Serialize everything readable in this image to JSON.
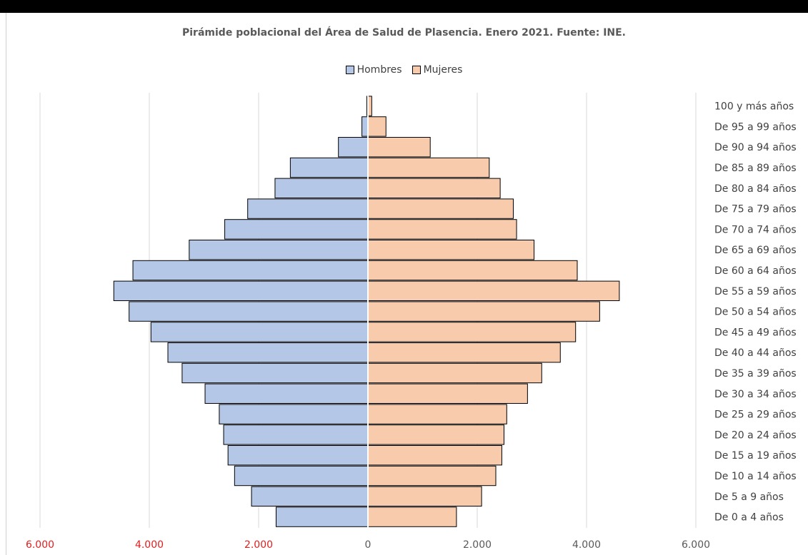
{
  "chart_data": {
    "type": "bar",
    "orientation": "horizontal-pyramid",
    "title": "Pirámide poblacional del Área de Salud de Plasencia. Enero 2021. Fuente: INE.",
    "categories": [
      "De 0 a 4 años",
      "De 5 a 9 años",
      "De 10 a 14 años",
      "De 15 a 19 años",
      "De 20 a 24 años",
      "De 25 a 29 años",
      "De 30 a 34 años",
      "De 35 a 39 años",
      "De 40 a 44 años",
      "De 45 a 49 años",
      "De 50 a 54 años",
      "De 55 a 59 años",
      "De 60 a 64 años",
      "De 65 a 69 años",
      "De 70 a 74 años",
      "De 75 a 79 años",
      "De 80 a 84 años",
      "De 85 a 89 años",
      "De 90 a 94 años",
      "De 95 a 99 años",
      "100 y más años"
    ],
    "series": [
      {
        "name": "Hombres",
        "color": "#b4c7e7",
        "values": [
          1680,
          2130,
          2440,
          2560,
          2640,
          2720,
          2980,
          3400,
          3660,
          3970,
          4370,
          4650,
          4300,
          3270,
          2620,
          2200,
          1700,
          1420,
          540,
          110,
          20
        ]
      },
      {
        "name": "Mujeres",
        "color": "#f8cbad",
        "values": [
          1620,
          2080,
          2340,
          2450,
          2490,
          2540,
          2920,
          3180,
          3520,
          3800,
          4240,
          4600,
          3830,
          3040,
          2720,
          2660,
          2420,
          2220,
          1140,
          330,
          70
        ]
      }
    ],
    "x_ticks": [
      "6.000",
      "4.000",
      "2.000",
      "0",
      "2.000",
      "4.000",
      "6.000"
    ],
    "xlim": [
      -6000,
      6000
    ],
    "grid": true,
    "legend_position": "top"
  }
}
